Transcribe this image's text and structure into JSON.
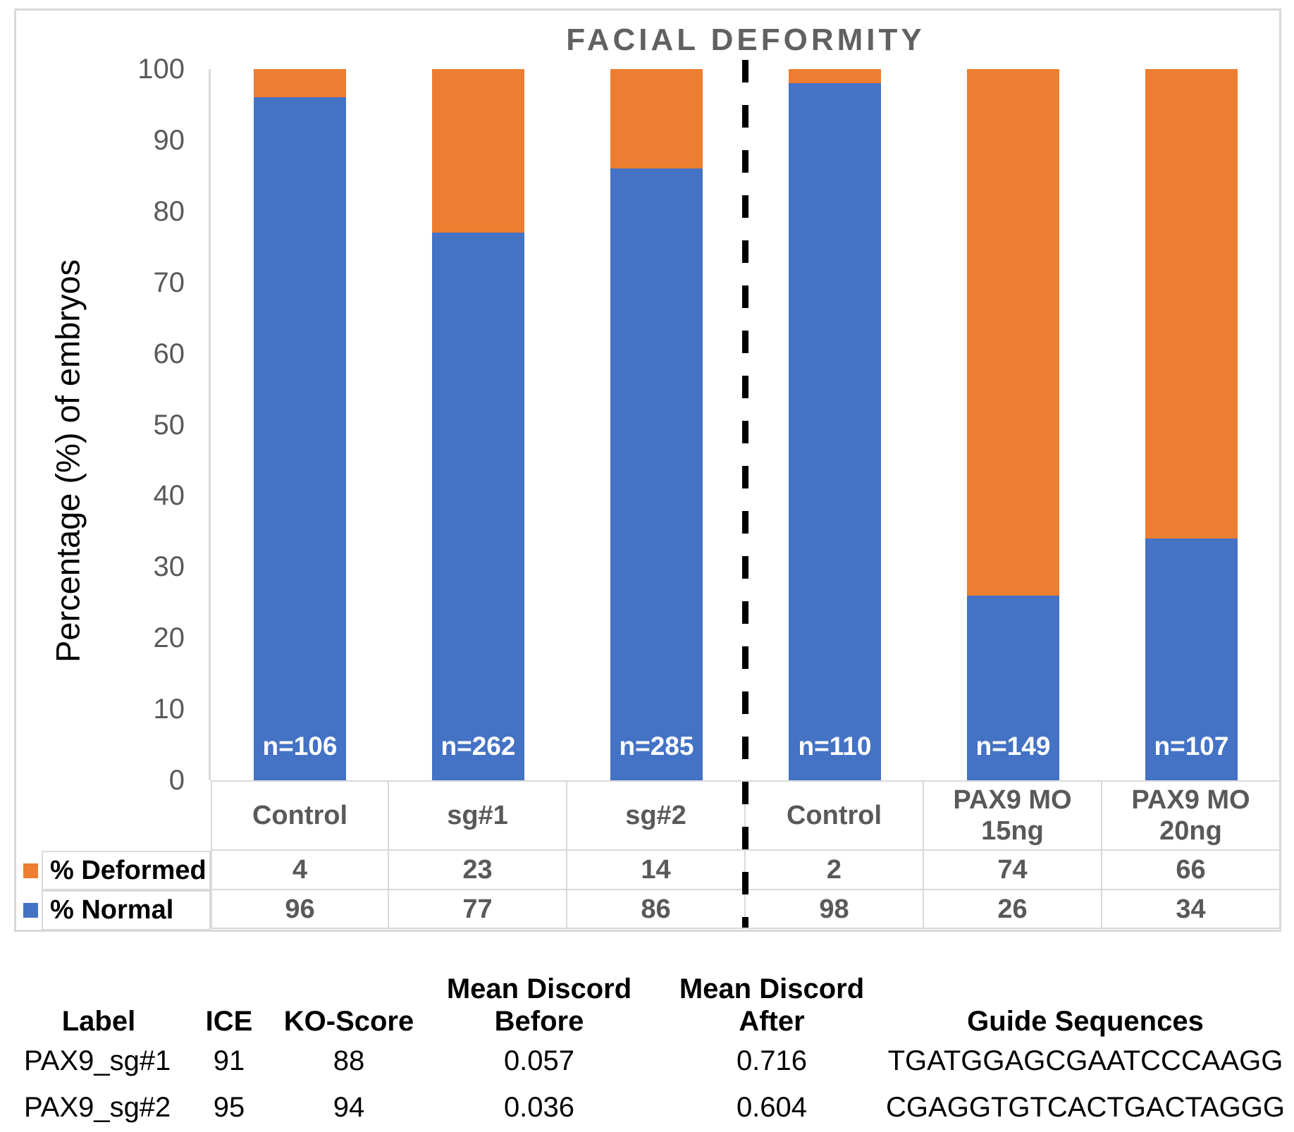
{
  "chart": {
    "title": "FACIAL DEFORMITY"
  },
  "chart_data": {
    "type": "bar",
    "stacked": true,
    "title": "FACIAL DEFORMITY",
    "xlabel": "",
    "ylabel": "Percentage (%) of embryos",
    "ylim": [
      0,
      100
    ],
    "ytick_step": 10,
    "yticks": [
      0,
      10,
      20,
      30,
      40,
      50,
      60,
      70,
      80,
      90,
      100
    ],
    "grid": false,
    "legend_position": "table-left",
    "categories": [
      "Control",
      "sg#1",
      "sg#2",
      "Control",
      "PAX9 MO 15ng",
      "PAX9 MO 20ng"
    ],
    "category_lines": [
      [
        "Control"
      ],
      [
        "sg#1"
      ],
      [
        "sg#2"
      ],
      [
        "Control"
      ],
      [
        "PAX9 MO",
        "15ng"
      ],
      [
        "PAX9 MO",
        "20ng"
      ]
    ],
    "series": [
      {
        "name": "% Deformed",
        "color": "#ED7D31",
        "values": [
          4,
          23,
          14,
          2,
          74,
          66
        ]
      },
      {
        "name": "% Normal",
        "color": "#4472C4",
        "values": [
          96,
          77,
          86,
          98,
          26,
          34
        ]
      }
    ],
    "bar_counts": [
      "n=106",
      "n=262",
      "n=285",
      "n=110",
      "n=149",
      "n=107"
    ],
    "divider_after_category_index": 2
  },
  "data_table": {
    "rows": [
      {
        "label": "% Deformed",
        "swatch_color": "#ED7D31",
        "values": [
          "4",
          "23",
          "14",
          "2",
          "74",
          "66"
        ]
      },
      {
        "label": "% Normal",
        "swatch_color": "#4472C4",
        "values": [
          "96",
          "77",
          "86",
          "98",
          "26",
          "34"
        ]
      }
    ]
  },
  "summary_table": {
    "headers": [
      {
        "top": "",
        "bottom": "Label"
      },
      {
        "top": "",
        "bottom": "ICE"
      },
      {
        "top": "",
        "bottom": "KO-Score"
      },
      {
        "top": "Mean Discord",
        "bottom": "Before"
      },
      {
        "top": "Mean Discord",
        "bottom": "After"
      },
      {
        "top": "",
        "bottom": "Guide Sequences"
      }
    ],
    "rows": [
      [
        "PAX9_sg#1",
        "91",
        "88",
        "0.057",
        "0.716",
        "TGATGGAGCGAATCCCAAGG"
      ],
      [
        "PAX9_sg#2",
        "95",
        "94",
        "0.036",
        "0.604",
        "CGAGGTGTCACTGACTAGGG"
      ]
    ]
  },
  "colors": {
    "normal_blue": "#4472C4",
    "deformed_orange": "#ED7D31",
    "axis_text": "#595959",
    "title_text": "#616161",
    "border": "#D9D9D9",
    "divider": "#000000",
    "bar_count_text": "#FFFFFF"
  }
}
